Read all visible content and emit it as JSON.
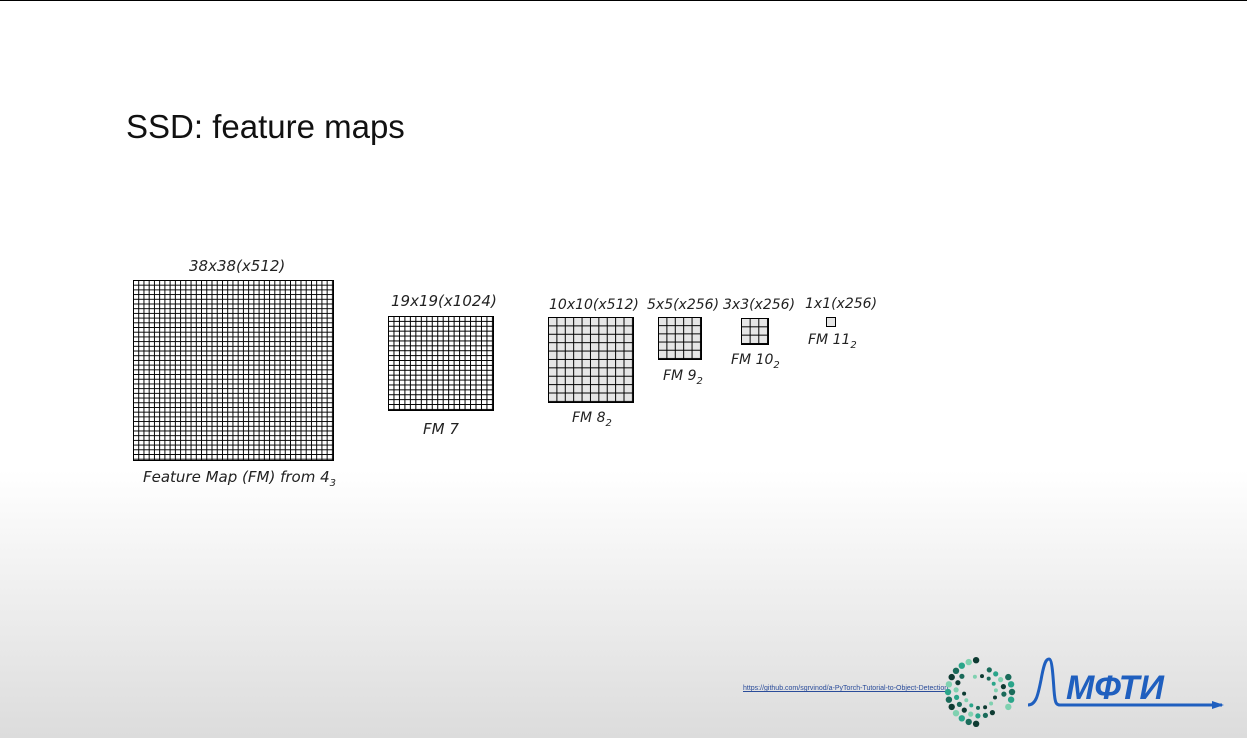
{
  "slide": {
    "title": "SSD: feature maps",
    "link_text": "https://github.com/sgrvinod/a-PyTorch-Tutorial-to-Object-Detection",
    "brand": {
      "text": "МФТИ",
      "color": "#1f5fbf",
      "ring_colors": [
        "#1a6b5a",
        "#2aa58a",
        "#7fd1b0",
        "#0e3b32"
      ]
    }
  },
  "feature_maps": [
    {
      "size_label": "38x38(x512)",
      "name_label": "Feature Map (FM) from 4",
      "name_sub": "3",
      "cells": 38
    },
    {
      "size_label": "19x19(x1024)",
      "name_label": "FM 7",
      "name_sub": "",
      "cells": 19
    },
    {
      "size_label": "10x10(x512)",
      "name_label": "FM 8",
      "name_sub": "2",
      "cells": 10
    },
    {
      "size_label": "5x5(x256)",
      "name_label": "FM 9",
      "name_sub": "2",
      "cells": 5
    },
    {
      "size_label": "3x3(x256)",
      "name_label": "FM 10",
      "name_sub": "2",
      "cells": 3
    },
    {
      "size_label": "1x1(x256)",
      "name_label": "FM 11",
      "name_sub": "2",
      "cells": 1
    }
  ]
}
